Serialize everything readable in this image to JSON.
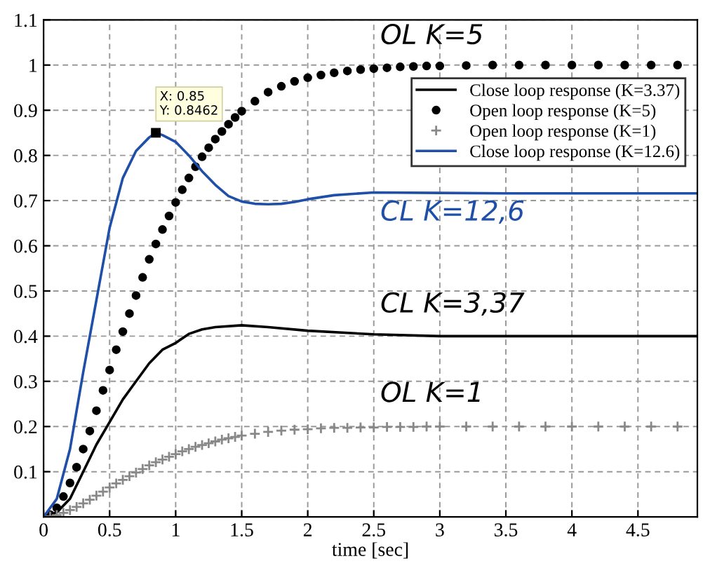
{
  "chart_data": {
    "type": "line",
    "xlabel": "time [sec]",
    "xlim": [
      0,
      4.95
    ],
    "ylim": [
      0,
      1.1
    ],
    "xticks": [
      0,
      0.5,
      1,
      1.5,
      2,
      2.5,
      3,
      3.5,
      4,
      4.5
    ],
    "yticks": [
      0.1,
      0.2,
      0.3,
      0.4,
      0.5,
      0.6,
      0.7,
      0.8,
      0.9,
      1,
      1.1
    ],
    "grid": true,
    "legend": "top right",
    "series": [
      {
        "name": "Close loop response (K=3.37)",
        "marker": "none",
        "color": "#000000",
        "x": [
          0,
          0.1,
          0.2,
          0.3,
          0.4,
          0.5,
          0.6,
          0.7,
          0.8,
          0.9,
          1.0,
          1.1,
          1.2,
          1.3,
          1.5,
          1.7,
          2.0,
          2.5,
          3.0,
          4.95
        ],
        "values": [
          0,
          0.01,
          0.04,
          0.1,
          0.16,
          0.21,
          0.26,
          0.3,
          0.34,
          0.37,
          0.385,
          0.405,
          0.415,
          0.42,
          0.424,
          0.42,
          0.412,
          0.404,
          0.4,
          0.4
        ]
      },
      {
        "name": "Open loop response (K=5)",
        "type": "scatter",
        "marker": "circle",
        "color": "#000000",
        "x": [
          0.05,
          0.1,
          0.15,
          0.2,
          0.25,
          0.3,
          0.35,
          0.4,
          0.45,
          0.5,
          0.55,
          0.6,
          0.65,
          0.7,
          0.75,
          0.8,
          0.85,
          0.9,
          0.95,
          1.0,
          1.05,
          1.1,
          1.15,
          1.2,
          1.25,
          1.3,
          1.35,
          1.4,
          1.45,
          1.5,
          1.6,
          1.7,
          1.8,
          1.9,
          2.0,
          2.1,
          2.2,
          2.3,
          2.4,
          2.5,
          2.6,
          2.7,
          2.8,
          2.9,
          3.0,
          3.2,
          3.4,
          3.6,
          3.8,
          4.0,
          4.2,
          4.4,
          4.6,
          4.8
        ],
        "values": [
          0.005,
          0.02,
          0.045,
          0.075,
          0.11,
          0.15,
          0.19,
          0.235,
          0.28,
          0.325,
          0.37,
          0.41,
          0.45,
          0.49,
          0.53,
          0.57,
          0.604,
          0.636,
          0.666,
          0.696,
          0.724,
          0.75,
          0.775,
          0.797,
          0.817,
          0.836,
          0.853,
          0.869,
          0.884,
          0.898,
          0.92,
          0.94,
          0.953,
          0.964,
          0.972,
          0.978,
          0.983,
          0.987,
          0.99,
          0.992,
          0.994,
          0.996,
          0.997,
          0.998,
          0.998,
          0.999,
          1.0,
          1.0,
          1.0,
          1.0,
          1.0,
          1.0,
          1.0,
          1.0
        ]
      },
      {
        "name": "Open loop response (K=1)",
        "type": "scatter",
        "marker": "cross",
        "color": "#888888",
        "x": [
          0,
          0.05,
          0.1,
          0.15,
          0.2,
          0.25,
          0.3,
          0.35,
          0.4,
          0.45,
          0.5,
          0.55,
          0.6,
          0.65,
          0.7,
          0.75,
          0.8,
          0.85,
          0.9,
          0.95,
          1.0,
          1.05,
          1.1,
          1.15,
          1.2,
          1.25,
          1.3,
          1.35,
          1.4,
          1.45,
          1.5,
          1.6,
          1.7,
          1.8,
          1.9,
          2.0,
          2.1,
          2.2,
          2.3,
          2.4,
          2.5,
          2.6,
          2.7,
          2.8,
          2.9,
          3.0,
          3.2,
          3.4,
          3.6,
          3.8,
          4.0,
          4.2,
          4.4,
          4.6,
          4.8
        ],
        "values": [
          0,
          0.001,
          0.004,
          0.009,
          0.015,
          0.022,
          0.03,
          0.038,
          0.047,
          0.056,
          0.065,
          0.074,
          0.082,
          0.09,
          0.098,
          0.106,
          0.114,
          0.121,
          0.127,
          0.133,
          0.139,
          0.145,
          0.15,
          0.155,
          0.159,
          0.163,
          0.167,
          0.171,
          0.174,
          0.177,
          0.18,
          0.184,
          0.188,
          0.191,
          0.193,
          0.194,
          0.196,
          0.197,
          0.197,
          0.198,
          0.198,
          0.199,
          0.199,
          0.199,
          0.2,
          0.2,
          0.2,
          0.2,
          0.2,
          0.2,
          0.2,
          0.2,
          0.2,
          0.2,
          0.2
        ]
      },
      {
        "name": "Close loop response (K=12.6)",
        "marker": "none",
        "color": "#1f4fa8",
        "x": [
          0,
          0.1,
          0.2,
          0.3,
          0.4,
          0.5,
          0.6,
          0.7,
          0.8,
          0.85,
          0.9,
          1.0,
          1.1,
          1.2,
          1.3,
          1.4,
          1.5,
          1.6,
          1.7,
          1.8,
          1.9,
          2.0,
          2.2,
          2.5,
          3.0,
          3.5,
          4.95
        ],
        "values": [
          0,
          0.04,
          0.15,
          0.32,
          0.48,
          0.64,
          0.75,
          0.81,
          0.84,
          0.85,
          0.845,
          0.83,
          0.8,
          0.765,
          0.735,
          0.71,
          0.698,
          0.693,
          0.692,
          0.693,
          0.697,
          0.703,
          0.712,
          0.718,
          0.717,
          0.716,
          0.716
        ]
      }
    ],
    "annotations": [
      "OL K=5",
      "CL K=12,6",
      "CL K=3,37",
      "OL K=1",
      {
        "text": "X: 0.85\nY: 0.8462",
        "x": 0.85,
        "y": 0.85
      }
    ]
  }
}
